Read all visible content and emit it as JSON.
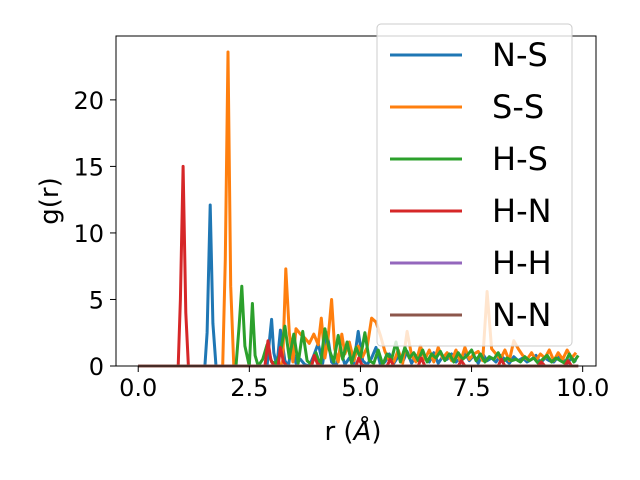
{
  "chart_data": {
    "type": "line",
    "title": "",
    "xlabel": "r (",
    "xlabel_symbol": "Å",
    "xlabel_close": ")",
    "ylabel": "g(r)",
    "xlim": [
      -0.5,
      10.3
    ],
    "ylim": [
      0,
      24.8
    ],
    "xticks": [
      0.0,
      2.5,
      5.0,
      7.5,
      10.0
    ],
    "xtick_labels": [
      "0.0",
      "2.5",
      "5.0",
      "7.5",
      "10.0"
    ],
    "yticks": [
      0,
      5,
      10,
      15,
      20
    ],
    "ytick_labels": [
      "0",
      "5",
      "10",
      "15",
      "20"
    ],
    "grid": false,
    "legend_position": "top-right",
    "series": [
      {
        "name": "N-S",
        "color": "#1f77b4",
        "x": [
          0,
          1.5,
          1.55,
          1.62,
          1.68,
          1.75,
          2.8,
          2.9,
          2.95,
          3.0,
          3.05,
          3.12,
          3.2,
          3.3,
          3.38,
          3.45,
          3.55,
          3.65,
          3.75,
          3.85,
          3.95,
          4.05,
          4.15,
          4.25,
          4.35,
          4.45,
          4.55,
          4.65,
          4.75,
          4.85,
          4.95,
          5.05,
          5.15,
          5.25,
          5.35,
          5.45,
          5.55,
          5.65,
          5.75,
          5.85,
          5.95,
          6.05,
          6.15,
          6.25,
          6.35,
          6.45,
          6.55,
          6.65,
          6.75,
          6.85,
          6.95,
          7.05,
          7.15,
          7.25,
          7.35,
          7.45,
          7.55,
          7.65,
          7.75,
          7.85,
          7.95,
          8.05,
          8.15,
          8.25,
          8.35,
          8.45,
          8.55,
          8.65,
          8.75,
          8.85,
          8.95,
          9.05,
          9.15,
          9.25,
          9.35,
          9.45,
          9.55,
          9.65,
          9.75,
          9.85
        ],
        "y": [
          0,
          0,
          2.5,
          12.1,
          3.2,
          0,
          0,
          0,
          1.8,
          3.5,
          1.0,
          0,
          2.7,
          0.4,
          0,
          1.5,
          0.2,
          0.5,
          0.1,
          0,
          0.8,
          1.7,
          0.2,
          2.5,
          0.3,
          0,
          1.2,
          0.1,
          0.6,
          0.2,
          2.6,
          0.4,
          0.1,
          0.6,
          1.4,
          0.1,
          0.3,
          0.9,
          0.2,
          0.7,
          0.3,
          1.1,
          0.2,
          0.8,
          0.4,
          0.6,
          0.3,
          1.0,
          0.2,
          0.7,
          0.5,
          0.9,
          0.3,
          0.6,
          1.0,
          0.4,
          0.8,
          0.2,
          0.9,
          0.4,
          0.6,
          0.3,
          0.8,
          0.5,
          0.2,
          0.7,
          0.4,
          0.6,
          0.3,
          0.5,
          0.8,
          0.2,
          0.6,
          0.4,
          0.3,
          0.7,
          0.5,
          0.2,
          0.6,
          0.3
        ]
      },
      {
        "name": "S-S",
        "color": "#ff7f0e",
        "x": [
          0,
          1.9,
          1.96,
          2.02,
          2.08,
          2.15,
          3.2,
          3.25,
          3.32,
          3.4,
          3.48,
          3.55,
          3.65,
          3.75,
          3.85,
          3.95,
          4.05,
          4.12,
          4.2,
          4.27,
          4.35,
          4.42,
          4.5,
          4.58,
          4.65,
          4.75,
          4.85,
          4.95,
          5.05,
          5.15,
          5.25,
          5.35,
          5.45,
          5.55,
          5.65,
          5.75,
          5.85,
          5.95,
          6.05,
          6.15,
          6.25,
          6.35,
          6.45,
          6.55,
          6.65,
          6.75,
          6.85,
          6.95,
          7.05,
          7.15,
          7.25,
          7.35,
          7.45,
          7.55,
          7.65,
          7.75,
          7.85,
          7.95,
          8.05,
          8.15,
          8.25,
          8.35,
          8.45,
          8.55,
          8.65,
          8.75,
          8.85,
          8.95,
          9.05,
          9.15,
          9.25,
          9.35,
          9.45,
          9.55,
          9.65,
          9.75,
          9.85
        ],
        "y": [
          0,
          0,
          8.0,
          23.6,
          6.0,
          0,
          0,
          0.4,
          7.3,
          2.5,
          0.3,
          2.8,
          2.4,
          2.1,
          1.7,
          2.4,
          1.6,
          3.6,
          0.6,
          2.0,
          5.0,
          1.3,
          0.3,
          2.4,
          0.9,
          1.8,
          0.4,
          1.5,
          0.7,
          1.4,
          3.6,
          3.3,
          2.3,
          1.1,
          0.4,
          0.3,
          1.2,
          0.2,
          2.6,
          0.8,
          0.3,
          1.5,
          0.5,
          1.2,
          0.3,
          1.4,
          0.6,
          1.0,
          0.4,
          1.2,
          0.3,
          1.4,
          0.5,
          0.9,
          1.1,
          0.4,
          5.6,
          1.3,
          0.9,
          0.5,
          1.2,
          0.4,
          1.9,
          1.3,
          0.8,
          0.5,
          1.0,
          0.4,
          0.9,
          0.6,
          1.2,
          0.4,
          1.0,
          0.5,
          1.2,
          0.6,
          1.0
        ]
      },
      {
        "name": "H-S",
        "color": "#2ca02c",
        "x": [
          0,
          2.2,
          2.27,
          2.33,
          2.4,
          2.5,
          2.57,
          2.63,
          2.7,
          2.8,
          2.9,
          3.0,
          3.1,
          3.2,
          3.3,
          3.4,
          3.5,
          3.6,
          3.7,
          3.8,
          3.9,
          4.0,
          4.1,
          4.2,
          4.3,
          4.4,
          4.5,
          4.6,
          4.7,
          4.8,
          4.9,
          5.0,
          5.1,
          5.2,
          5.3,
          5.4,
          5.5,
          5.6,
          5.7,
          5.8,
          5.9,
          6.0,
          6.1,
          6.2,
          6.3,
          6.4,
          6.5,
          6.6,
          6.7,
          6.8,
          6.9,
          7.0,
          7.1,
          7.2,
          7.3,
          7.4,
          7.5,
          7.6,
          7.7,
          7.8,
          7.9,
          8.0,
          8.1,
          8.2,
          8.3,
          8.4,
          8.5,
          8.6,
          8.7,
          8.8,
          8.9,
          9.0,
          9.1,
          9.2,
          9.3,
          9.4,
          9.5,
          9.6,
          9.7,
          9.8,
          9.9
        ],
        "y": [
          0,
          0,
          3.0,
          6.0,
          1.5,
          0,
          4.7,
          0.8,
          0,
          0.5,
          1.6,
          0.3,
          0.2,
          1.0,
          3.0,
          0.6,
          2.4,
          0.2,
          2.6,
          0.4,
          0.1,
          1.0,
          0,
          2.8,
          1.2,
          0.3,
          2.3,
          0.5,
          1.8,
          0.2,
          1.4,
          0.6,
          2.5,
          0.4,
          0.2,
          1.2,
          0.1,
          0.9,
          0.5,
          1.8,
          0.3,
          1.4,
          0.6,
          1.0,
          0.4,
          1.2,
          0.3,
          0.9,
          0.6,
          1.1,
          0.4,
          0.9,
          0.3,
          1.0,
          0.5,
          0.8,
          1.2,
          0.4,
          0.9,
          0.3,
          0.7,
          0.5,
          1.0,
          0.3,
          0.6,
          0.4,
          0.5,
          0.3,
          0.7,
          0.4,
          0.6,
          0.2,
          0.5,
          0.8,
          0.3,
          0.6,
          0.4,
          0.2,
          0.9,
          0.3,
          0.8
        ]
      },
      {
        "name": "H-N",
        "color": "#d62728",
        "x": [
          0,
          0.9,
          0.95,
          1.01,
          1.07,
          1.13,
          2.85,
          2.92,
          2.98,
          3.05,
          3.15,
          3.2,
          3.27,
          3.34,
          3.45,
          3.9,
          3.96,
          4.03,
          4.1,
          4.9,
          4.96,
          5.03,
          5.1,
          5.6,
          5.67,
          5.75,
          6.3,
          6.37,
          6.45,
          7.2,
          7.27,
          7.35,
          8.1,
          8.17,
          8.25,
          9.0,
          9.07,
          9.15,
          9.6,
          9.67,
          9.75,
          9.9
        ],
        "y": [
          0,
          0,
          5.0,
          15.0,
          4.0,
          0,
          0,
          1.9,
          0.5,
          0,
          0,
          1.4,
          0.3,
          0,
          0,
          0,
          0.8,
          0.2,
          0,
          0,
          0.6,
          0.1,
          0,
          0,
          0.5,
          0,
          0,
          0.6,
          0,
          0,
          0.4,
          0,
          0,
          0.5,
          0,
          0,
          0.3,
          0,
          0,
          0.4,
          0,
          0
        ]
      },
      {
        "name": "H-H",
        "color": "#9467bd",
        "x": [
          0,
          9.9
        ],
        "y": [
          0,
          0
        ]
      },
      {
        "name": "N-N",
        "color": "#8c564b",
        "x": [
          0,
          9.9
        ],
        "y": [
          0,
          0
        ]
      }
    ]
  }
}
